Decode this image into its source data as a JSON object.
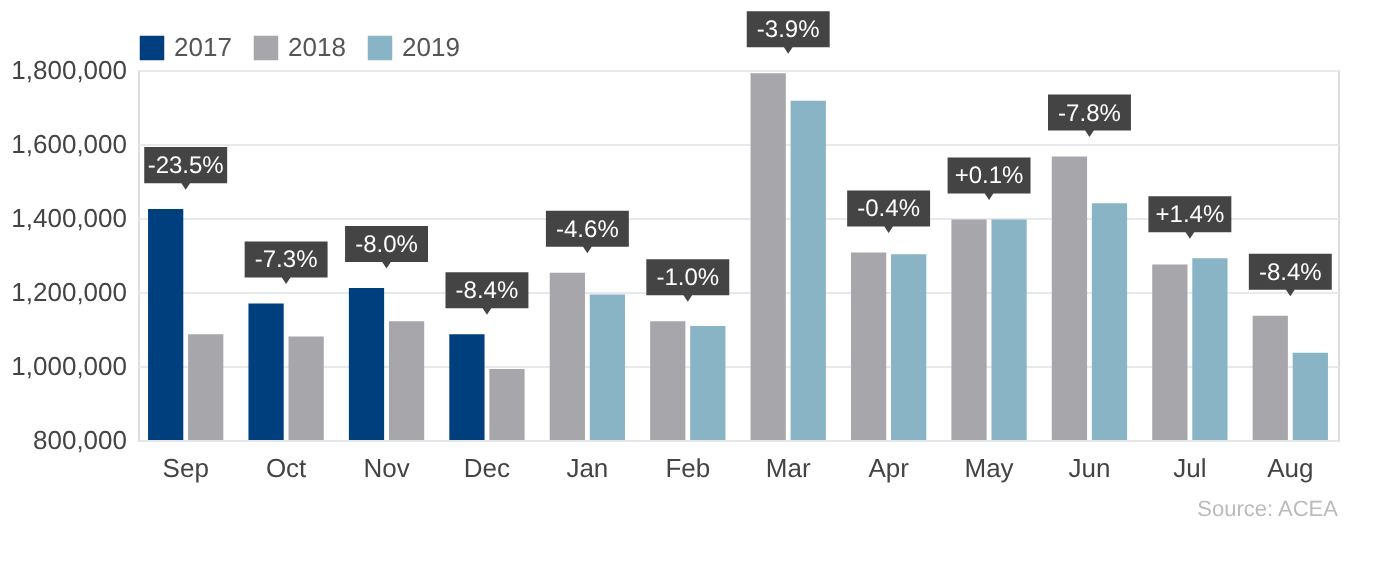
{
  "chart_data": {
    "type": "bar",
    "categories": [
      "Sep",
      "Oct",
      "Nov",
      "Dec",
      "Jan",
      "Feb",
      "Mar",
      "Apr",
      "May",
      "Jun",
      "Jul",
      "Aug"
    ],
    "series": [
      {
        "name": "2017",
        "color": "#003f7d",
        "values": [
          1424000,
          1169000,
          1211000,
          1086000,
          null,
          null,
          null,
          null,
          null,
          null,
          null,
          null
        ]
      },
      {
        "name": "2018",
        "color": "#a7a7ab",
        "values": [
          1086000,
          1080000,
          1121000,
          992000,
          1252000,
          1121000,
          1791000,
          1307000,
          1396000,
          1566000,
          1274000,
          1136000
        ]
      },
      {
        "name": "2019",
        "color": "#88b4c6",
        "values": [
          null,
          null,
          null,
          null,
          1193000,
          1108000,
          1717000,
          1302000,
          1396000,
          1440000,
          1291000,
          1036000
        ]
      }
    ],
    "ylim": [
      800000,
      1800000
    ],
    "yticks": [
      {
        "value": 800000,
        "label": "800,000"
      },
      {
        "value": 1000000,
        "label": "1,000,000"
      },
      {
        "value": 1200000,
        "label": "1,200,000"
      },
      {
        "value": 1400000,
        "label": "1,400,000"
      },
      {
        "value": 1600000,
        "label": "1,600,000"
      },
      {
        "value": 1800000,
        "label": "1,800,000"
      }
    ],
    "grid": "y",
    "legend": "top left",
    "annotations": [
      {
        "text": "-23.5%",
        "x": "Sep",
        "y": 1424000
      },
      {
        "text": "-7.3%",
        "x": "Oct",
        "y": 1169000
      },
      {
        "text": "-8.0%",
        "x": "Nov",
        "y": 1211000
      },
      {
        "text": "-8.4%",
        "x": "Dec",
        "y": 1086000
      },
      {
        "text": "-4.6%",
        "x": "Jan",
        "y": 1252000
      },
      {
        "text": "-1.0%",
        "x": "Feb",
        "y": 1121000
      },
      {
        "text": "-3.9%",
        "x": "Mar",
        "y": 1791000
      },
      {
        "text": "-0.4%",
        "x": "Apr",
        "y": 1307000
      },
      {
        "text": "+0.1%",
        "x": "May",
        "y": 1396000
      },
      {
        "text": "-7.8%",
        "x": "Jun",
        "y": 1566000
      },
      {
        "text": "+1.4%",
        "x": "Jul",
        "y": 1291000
      },
      {
        "text": "-8.4%",
        "x": "Aug",
        "y": 1136000
      },
      "Source:  ACEA"
    ]
  }
}
